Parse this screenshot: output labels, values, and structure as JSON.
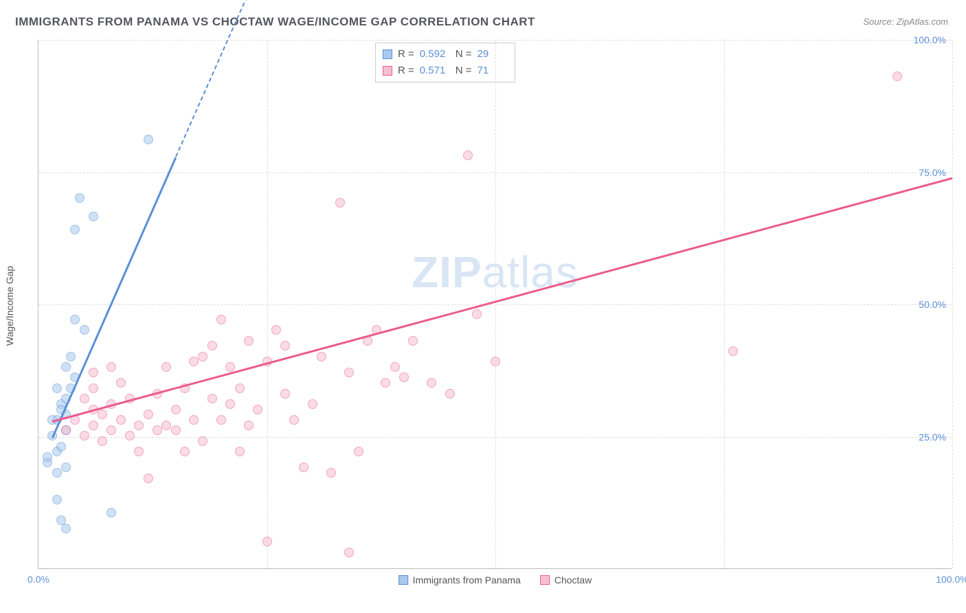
{
  "title": "IMMIGRANTS FROM PANAMA VS CHOCTAW WAGE/INCOME GAP CORRELATION CHART",
  "source": "Source: ZipAtlas.com",
  "watermark": {
    "bold": "ZIP",
    "rest": "atlas"
  },
  "chart": {
    "type": "scatter",
    "background_color": "#ffffff",
    "grid_color": "#dddddd",
    "axis_color": "#bbbbbb",
    "y_label": "Wage/Income Gap",
    "label_fontsize": 14,
    "xlim": [
      0,
      100
    ],
    "ylim": [
      0,
      100
    ],
    "y_ticks": [
      {
        "v": 25,
        "label": "25.0%"
      },
      {
        "v": 50,
        "label": "50.0%"
      },
      {
        "v": 75,
        "label": "75.0%"
      },
      {
        "v": 100,
        "label": "100.0%"
      }
    ],
    "x_ticks": [
      {
        "v": 0,
        "label": "0.0%"
      },
      {
        "v": 100,
        "label": "100.0%"
      }
    ],
    "x_grid_at": [
      25,
      50,
      75,
      100
    ],
    "tick_label_color": "#5b8fd6",
    "marker_size": 14,
    "marker_opacity": 0.55,
    "series": [
      {
        "key": "panama",
        "label": "Immigrants from Panama",
        "fill": "#a9c9ee",
        "stroke": "#5b8fd6",
        "r_value": "0.592",
        "n_value": "29",
        "trend": {
          "x1": 1.5,
          "y1": 25,
          "x2": 15,
          "y2": 78,
          "ext_to_x": 24,
          "ext_to_y": 113
        },
        "points": [
          [
            1,
            22
          ],
          [
            1,
            23
          ],
          [
            2,
            20
          ],
          [
            2,
            24
          ],
          [
            2.5,
            25
          ],
          [
            3,
            21
          ],
          [
            3,
            28
          ],
          [
            1.5,
            27
          ],
          [
            2,
            30
          ],
          [
            2.5,
            33
          ],
          [
            3,
            34
          ],
          [
            4,
            38
          ],
          [
            2,
            36
          ],
          [
            3,
            40
          ],
          [
            3.5,
            42
          ],
          [
            5,
            47
          ],
          [
            4,
            49
          ],
          [
            4,
            66
          ],
          [
            6,
            68.5
          ],
          [
            8,
            12.5
          ],
          [
            3,
            9.5
          ],
          [
            2.5,
            11
          ],
          [
            3,
            31
          ],
          [
            3.5,
            36
          ],
          [
            2,
            15
          ],
          [
            12,
            83
          ],
          [
            4.5,
            72
          ],
          [
            2.5,
            32
          ],
          [
            1.5,
            30
          ]
        ]
      },
      {
        "key": "choctaw",
        "label": "Choctaw",
        "fill": "#f6bfd3",
        "stroke": "#ea5b8d",
        "r_value": "0.571",
        "n_value": "71",
        "trend": {
          "x1": 1.5,
          "y1": 28,
          "x2": 100,
          "y2": 74
        },
        "points": [
          [
            3,
            28
          ],
          [
            4,
            30
          ],
          [
            5,
            27
          ],
          [
            5,
            34
          ],
          [
            6,
            29
          ],
          [
            6,
            36
          ],
          [
            7,
            26
          ],
          [
            7,
            31
          ],
          [
            8,
            33
          ],
          [
            8,
            28
          ],
          [
            9,
            30
          ],
          [
            10,
            34
          ],
          [
            10,
            27
          ],
          [
            11,
            24
          ],
          [
            12,
            19
          ],
          [
            12,
            31
          ],
          [
            13,
            35
          ],
          [
            14,
            40
          ],
          [
            14,
            29
          ],
          [
            15,
            32
          ],
          [
            16,
            36
          ],
          [
            16,
            24
          ],
          [
            17,
            30
          ],
          [
            18,
            42
          ],
          [
            18,
            26
          ],
          [
            19,
            34
          ],
          [
            20,
            49
          ],
          [
            20,
            30
          ],
          [
            21,
            40
          ],
          [
            22,
            36
          ],
          [
            22,
            24
          ],
          [
            23,
            45
          ],
          [
            24,
            32
          ],
          [
            25,
            7
          ],
          [
            25,
            41
          ],
          [
            26,
            47
          ],
          [
            27,
            35
          ],
          [
            27,
            44
          ],
          [
            28,
            30
          ],
          [
            29,
            21
          ],
          [
            30,
            33
          ],
          [
            31,
            42
          ],
          [
            32,
            20
          ],
          [
            33,
            71
          ],
          [
            34,
            39
          ],
          [
            35,
            24
          ],
          [
            36,
            45
          ],
          [
            37,
            47
          ],
          [
            38,
            37
          ],
          [
            39,
            40
          ],
          [
            40,
            38
          ],
          [
            41,
            45
          ],
          [
            34,
            5
          ],
          [
            43,
            37
          ],
          [
            45,
            35
          ],
          [
            47,
            80
          ],
          [
            48,
            50
          ],
          [
            50,
            41
          ],
          [
            76,
            43
          ],
          [
            94,
            95
          ],
          [
            6,
            39
          ],
          [
            8,
            40
          ],
          [
            9,
            37
          ],
          [
            11,
            29
          ],
          [
            13,
            28
          ],
          [
            15,
            28
          ],
          [
            17,
            41
          ],
          [
            19,
            44
          ],
          [
            21,
            33
          ],
          [
            23,
            29
          ],
          [
            6,
            32
          ]
        ]
      }
    ],
    "stats_box": {
      "r_label": "R =",
      "n_label": "N ="
    },
    "legend_position": "top-center"
  }
}
